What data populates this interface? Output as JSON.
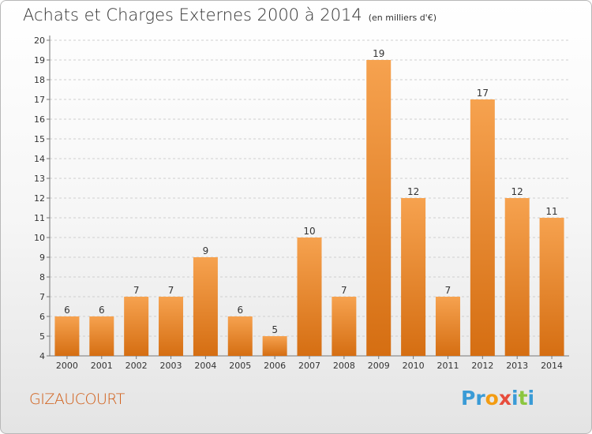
{
  "header": {
    "title": "Achats et Charges Externes 2000 à 2014",
    "unit": "(en milliers d'€)"
  },
  "commune": "GIZAUCOURT",
  "logo": {
    "letters": [
      "P",
      "r",
      "o",
      "x",
      "i",
      "t",
      "i"
    ],
    "colors": [
      "#3a9bd6",
      "#3a9bd6",
      "#f39c12",
      "#e74c3c",
      "#3a9bd6",
      "#8cc63f",
      "#3a9bd6"
    ]
  },
  "colors": {
    "bar_light": "#f6a24f",
    "bar_dark": "#d56e12",
    "grid": "#cfcfcf",
    "text": "#333333"
  },
  "chart_data": {
    "type": "bar",
    "title": "Achats et Charges Externes 2000 à 2014",
    "subtitle": "(en milliers d'€)",
    "categories": [
      "2000",
      "2001",
      "2002",
      "2003",
      "2004",
      "2005",
      "2006",
      "2007",
      "2008",
      "2009",
      "2010",
      "2011",
      "2012",
      "2013",
      "2014"
    ],
    "values": [
      6,
      6,
      7,
      7,
      9,
      6,
      5,
      10,
      7,
      19,
      12,
      7,
      17,
      12,
      11
    ],
    "data_labels": [
      "6",
      "6",
      "7",
      "7",
      "9",
      "6",
      "5",
      "10",
      "7",
      "19",
      "12",
      "7",
      "17",
      "12",
      "11"
    ],
    "ylim": [
      4,
      20
    ],
    "yticks": [
      "4",
      "5",
      "6",
      "7",
      "8",
      "9",
      "10",
      "11",
      "12",
      "13",
      "14",
      "15",
      "16",
      "17",
      "18",
      "19",
      "20"
    ],
    "grid": true,
    "legend": "none"
  }
}
